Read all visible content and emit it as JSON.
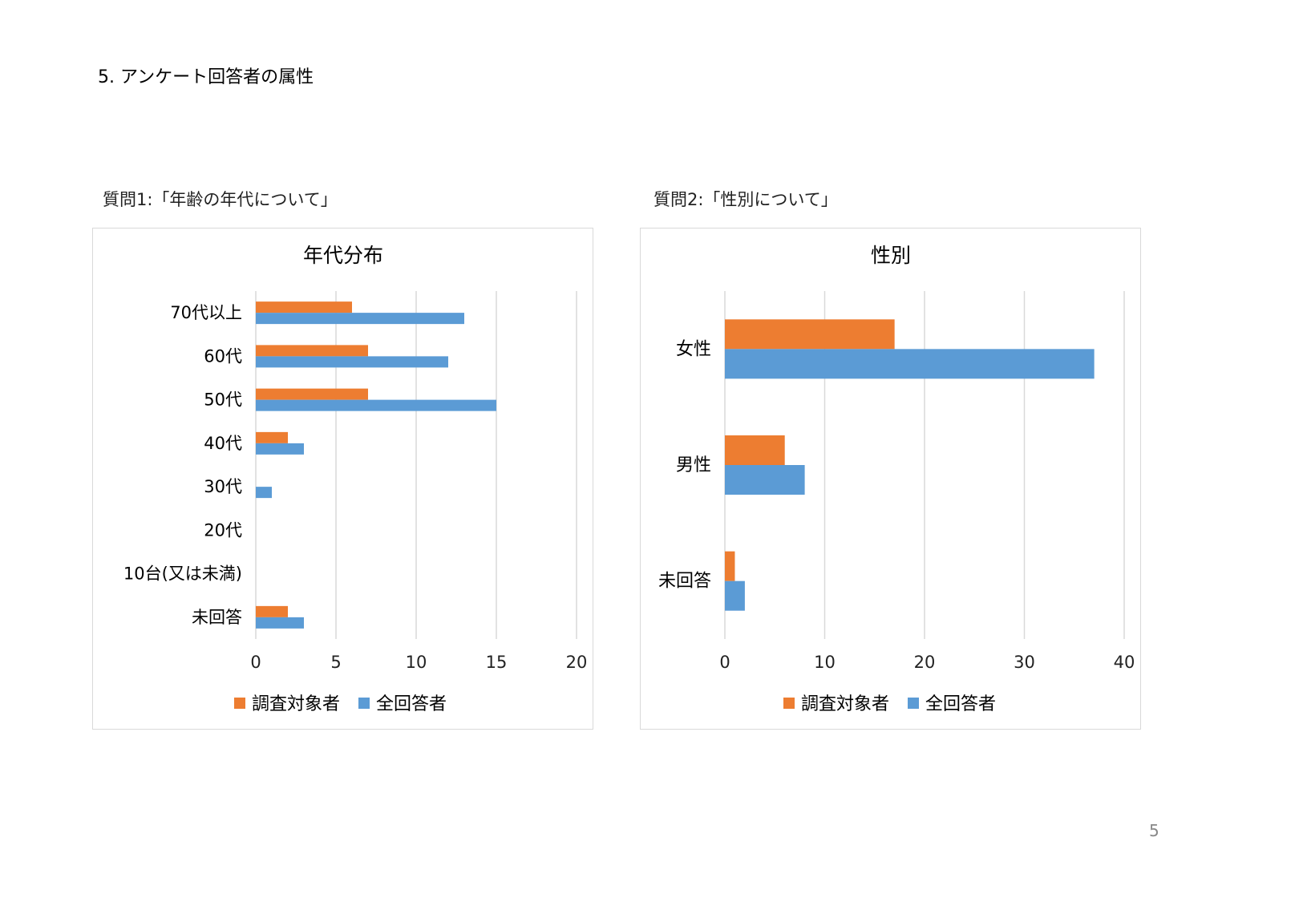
{
  "heading": "5. アンケート回答者の属性",
  "page_number": "5",
  "questions": [
    "質問1:「年齢の年代について」",
    "質問2:「性別について」"
  ],
  "colors": {
    "target": "#ED7D31",
    "all": "#5B9BD5",
    "grid": "#d9d9d9"
  },
  "chart_data": [
    {
      "type": "bar",
      "orientation": "horizontal",
      "title": "年代分布",
      "categories": [
        "70代以上",
        "60代",
        "50代",
        "40代",
        "30代",
        "20代",
        "10台(又は未満)",
        "未回答"
      ],
      "series": [
        {
          "name": "調査対象者",
          "values": [
            6,
            7,
            7,
            2,
            0,
            0,
            0,
            2
          ]
        },
        {
          "name": "全回答者",
          "values": [
            13,
            12,
            15,
            3,
            1,
            0,
            0,
            3
          ]
        }
      ],
      "xlim": [
        0,
        20
      ],
      "xticks": [
        "0",
        "5",
        "10",
        "15",
        "20"
      ],
      "grid": true,
      "legend": "bottom"
    },
    {
      "type": "bar",
      "orientation": "horizontal",
      "title": "性別",
      "categories": [
        "女性",
        "男性",
        "未回答"
      ],
      "series": [
        {
          "name": "調査対象者",
          "values": [
            17,
            6,
            1
          ]
        },
        {
          "name": "全回答者",
          "values": [
            37,
            8,
            2
          ]
        }
      ],
      "xlim": [
        0,
        40
      ],
      "xticks": [
        "0",
        "10",
        "20",
        "30",
        "40"
      ],
      "grid": true,
      "legend": "bottom"
    }
  ]
}
